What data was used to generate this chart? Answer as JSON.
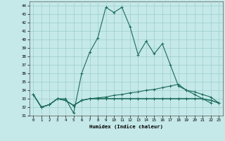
{
  "xlabel": "Humidex (Indice chaleur)",
  "background_color": "#c5e8e8",
  "grid_color": "#9dcece",
  "line_color": "#1a6b5a",
  "xlim": [
    -0.5,
    23.5
  ],
  "ylim": [
    31,
    44.5
  ],
  "yticks": [
    31,
    32,
    33,
    34,
    35,
    36,
    37,
    38,
    39,
    40,
    41,
    42,
    43,
    44
  ],
  "xticks": [
    0,
    1,
    2,
    3,
    4,
    5,
    6,
    7,
    8,
    9,
    10,
    11,
    12,
    13,
    14,
    15,
    16,
    17,
    18,
    19,
    20,
    21,
    22,
    23
  ],
  "series": [
    {
      "x": [
        0,
        1,
        2,
        3,
        4,
        5,
        6,
        7,
        8,
        9,
        10,
        11,
        12,
        13,
        14,
        15,
        16,
        17,
        18,
        19,
        20,
        21,
        22
      ],
      "y": [
        33.5,
        32,
        32.3,
        33,
        33,
        31.3,
        36,
        38.5,
        40.2,
        43.8,
        43.2,
        43.8,
        41.5,
        38.2,
        39.8,
        38.3,
        39.5,
        37.0,
        34.5,
        34.0,
        33.5,
        33.0,
        32.5
      ]
    },
    {
      "x": [
        0,
        1,
        2,
        3,
        4,
        5,
        6,
        7,
        8,
        9,
        10,
        11,
        12,
        13,
        14,
        15,
        16,
        17,
        18,
        19,
        20,
        21,
        22,
        23
      ],
      "y": [
        33.5,
        32.0,
        32.3,
        33.0,
        32.8,
        32.2,
        32.8,
        33.0,
        33.1,
        33.2,
        33.4,
        33.5,
        33.7,
        33.8,
        34.0,
        34.1,
        34.3,
        34.5,
        34.7,
        34.0,
        33.8,
        33.5,
        33.2,
        32.5
      ]
    },
    {
      "x": [
        0,
        1,
        2,
        3,
        4,
        5,
        6,
        7,
        8,
        9,
        10,
        11,
        12,
        13,
        14,
        15,
        16,
        17,
        18,
        19,
        20,
        21,
        22,
        23
      ],
      "y": [
        33.5,
        32.0,
        32.3,
        33.0,
        32.8,
        32.2,
        32.8,
        33.0,
        33.0,
        33.0,
        33.0,
        33.0,
        33.0,
        33.0,
        33.0,
        33.0,
        33.0,
        33.0,
        33.0,
        33.0,
        33.0,
        33.0,
        32.8,
        32.5
      ]
    },
    {
      "x": [
        0,
        1,
        2,
        3,
        4,
        5,
        6,
        7,
        8,
        9,
        10,
        11,
        12,
        13,
        14,
        15,
        16,
        17,
        18,
        19,
        20,
        21,
        22,
        23
      ],
      "y": [
        33.5,
        32.0,
        32.3,
        33.0,
        32.8,
        32.2,
        32.8,
        33.0,
        33.0,
        33.0,
        33.0,
        33.0,
        33.0,
        33.0,
        33.0,
        33.0,
        33.0,
        33.0,
        33.0,
        33.0,
        33.0,
        33.0,
        32.8,
        32.5
      ]
    }
  ]
}
